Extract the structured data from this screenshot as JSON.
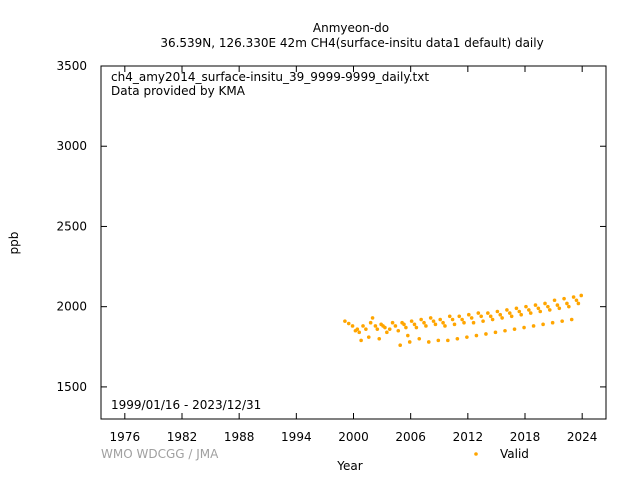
{
  "header": {
    "station": "Anmyeon-do",
    "subtitle": "36.539N, 126.330E 42m    CH4(surface-insitu data1 default) daily"
  },
  "annotations": {
    "filename": "ch4_amy2014_surface-insitu_39_9999-9999_daily.txt",
    "provider": "Data provided by KMA",
    "period": "1999/01/16 - 2023/12/31"
  },
  "footer": {
    "credit": "WMO WDCGG / JMA"
  },
  "chart_data": {
    "type": "scatter",
    "xlabel": "Year",
    "ylabel": "ppb",
    "xlim": [
      1973.5,
      2026.5
    ],
    "ylim": [
      1300,
      3500
    ],
    "x_ticks": [
      1976,
      1982,
      1988,
      1994,
      2000,
      2006,
      2012,
      2018,
      2024
    ],
    "y_ticks": [
      1500,
      2000,
      2500,
      3000,
      3500
    ],
    "legend": {
      "position": "bottom-right",
      "entries": [
        {
          "label": "Valid",
          "color": "#ffa500"
        }
      ]
    },
    "series": [
      {
        "name": "Valid",
        "color": "#ffa500",
        "x": [
          1999.1,
          1999.5,
          1999.9,
          2000.2,
          2000.4,
          2000.6,
          2000.8,
          2001.0,
          2001.3,
          2001.6,
          2001.8,
          2002.0,
          2002.3,
          2002.5,
          2002.7,
          2002.9,
          2003.1,
          2003.3,
          2003.5,
          2003.8,
          2004.1,
          2004.4,
          2004.7,
          2004.9,
          2005.1,
          2005.3,
          2005.5,
          2005.7,
          2005.9,
          2006.1,
          2006.4,
          2006.6,
          2006.9,
          2007.1,
          2007.4,
          2007.6,
          2007.9,
          2008.1,
          2008.4,
          2008.6,
          2008.9,
          2009.1,
          2009.4,
          2009.6,
          2009.9,
          2010.1,
          2010.4,
          2010.6,
          2010.9,
          2011.1,
          2011.4,
          2011.6,
          2011.9,
          2012.1,
          2012.4,
          2012.6,
          2012.9,
          2013.1,
          2013.4,
          2013.6,
          2013.9,
          2014.1,
          2014.4,
          2014.6,
          2014.9,
          2015.1,
          2015.4,
          2015.6,
          2015.9,
          2016.1,
          2016.4,
          2016.6,
          2016.9,
          2017.1,
          2017.4,
          2017.6,
          2017.9,
          2018.1,
          2018.4,
          2018.6,
          2018.9,
          2019.1,
          2019.4,
          2019.6,
          2019.9,
          2020.1,
          2020.4,
          2020.6,
          2020.9,
          2021.1,
          2021.4,
          2021.6,
          2021.9,
          2022.1,
          2022.4,
          2022.6,
          2022.9,
          2023.1,
          2023.4,
          2023.6,
          2023.9
        ],
        "y": [
          1910,
          1895,
          1880,
          1850,
          1860,
          1840,
          1790,
          1880,
          1860,
          1810,
          1900,
          1930,
          1880,
          1860,
          1800,
          1890,
          1880,
          1870,
          1840,
          1860,
          1900,
          1880,
          1850,
          1760,
          1900,
          1890,
          1870,
          1820,
          1780,
          1910,
          1890,
          1870,
          1800,
          1920,
          1900,
          1880,
          1780,
          1930,
          1910,
          1890,
          1790,
          1920,
          1900,
          1880,
          1790,
          1940,
          1920,
          1890,
          1800,
          1940,
          1920,
          1900,
          1810,
          1950,
          1930,
          1900,
          1820,
          1960,
          1940,
          1910,
          1830,
          1960,
          1940,
          1920,
          1840,
          1970,
          1950,
          1930,
          1850,
          1980,
          1960,
          1940,
          1860,
          1990,
          1970,
          1950,
          1870,
          2000,
          1980,
          1960,
          1880,
          2010,
          1990,
          1970,
          1890,
          2020,
          2000,
          1980,
          1900,
          2040,
          2010,
          1990,
          1910,
          2050,
          2020,
          2000,
          1920,
          2060,
          2040,
          2020,
          2070
        ]
      }
    ]
  }
}
